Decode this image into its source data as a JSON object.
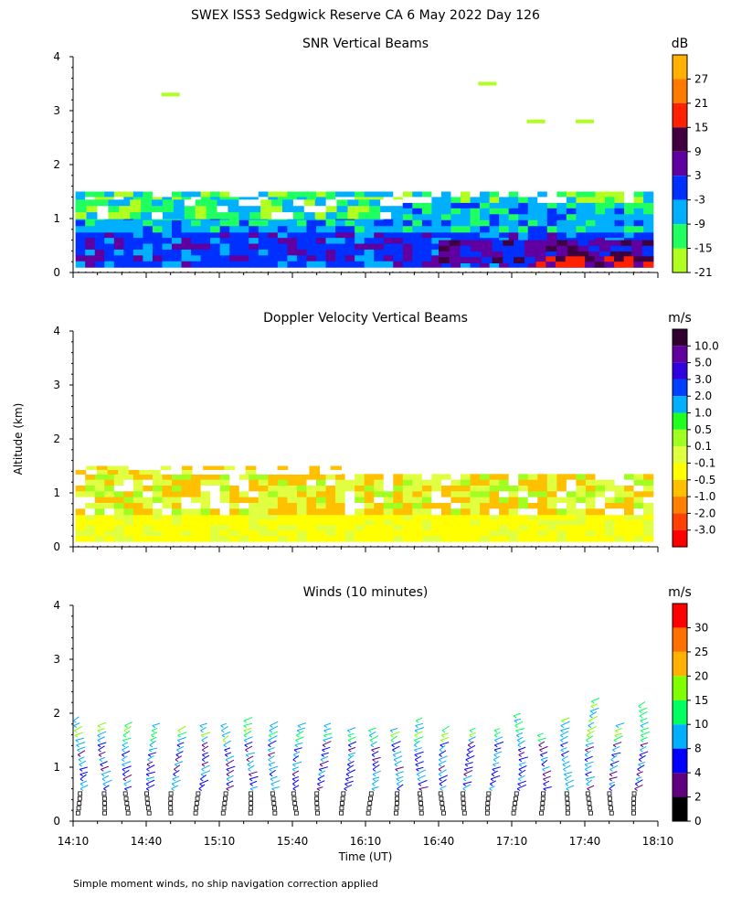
{
  "chart_data": {
    "type": "heatmap",
    "title": "SWEX ISS3 Sedgwick Reserve CA   6 May 2022 Day 126",
    "ylabel": "Altitude (km)",
    "xlabel": "Time (UT)",
    "footnote": "Simple moment winds, no ship navigation correction applied",
    "ylim": [
      0,
      4
    ],
    "yticks": [
      "0",
      "1",
      "2",
      "3",
      "4"
    ],
    "xlim_minutes": [
      850,
      1090
    ],
    "xtick_labels": [
      "14:10",
      "14:40",
      "15:10",
      "15:40",
      "16:10",
      "16:40",
      "17:10",
      "17:40",
      "18:10"
    ],
    "panels": [
      {
        "title": "SNR Vertical Beams",
        "unit": "dB",
        "colorbar_labels": [
          "27",
          "21",
          "15",
          "9",
          "3",
          "-3",
          "-9",
          "-15",
          "-21"
        ],
        "colors": [
          "#ffb000",
          "#ff7a00",
          "#ff2000",
          "#400040",
          "#6000a0",
          "#0030ff",
          "#00b0ff",
          "#20ff60",
          "#b0ff20"
        ],
        "layers": [
          {
            "alt_from": 0.05,
            "alt_to": 0.35,
            "value": -3
          },
          {
            "alt_from": 0.35,
            "alt_to": 0.7,
            "value": -3
          },
          {
            "alt_from": 0.7,
            "alt_to": 1.25,
            "value": -9
          },
          {
            "alt_from": 1.25,
            "alt_to": 1.45,
            "value": -15
          },
          {
            "alt_from": 1.45,
            "alt_to": 1.55,
            "value": -21
          },
          {
            "alt_from": 0.1,
            "alt_to": 0.35,
            "value": 15,
            "time_from": "17:15",
            "time_to": "18:10"
          },
          {
            "alt_from": 0.3,
            "alt_to": 0.65,
            "value": 6,
            "time_from": "16:00",
            "time_to": "18:10"
          }
        ],
        "echoes": [
          {
            "time": "17:40",
            "alt": 2.8,
            "value": -21
          },
          {
            "time": "17:20",
            "alt": 2.8,
            "value": -21
          },
          {
            "time": "17:00",
            "alt": 3.5,
            "value": -21
          },
          {
            "time": "14:50",
            "alt": 3.3,
            "value": -21
          }
        ]
      },
      {
        "title": "Doppler Velocity Vertical Beams",
        "unit": "m/s",
        "colorbar_labels": [
          "10.0",
          "5.0",
          "3.0",
          "2.0",
          "1.0",
          "0.5",
          "0.1",
          "-0.1",
          "-0.5",
          "-1.0",
          "-2.0",
          "-3.0"
        ],
        "colors": [
          "#300030",
          "#6000a0",
          "#3000e0",
          "#0040ff",
          "#00b0ff",
          "#20ff20",
          "#a0ff20",
          "#e0ff40",
          "#ffff00",
          "#ffc000",
          "#ff8000",
          "#ff4000",
          "#ff0000"
        ],
        "layers": [
          {
            "alt_from": 0.05,
            "alt_to": 0.6,
            "value": -0.1
          },
          {
            "alt_from": 0.6,
            "alt_to": 1.35,
            "value": -0.5
          },
          {
            "alt_from": 0.4,
            "alt_to": 1.3,
            "value": 0.1
          }
        ]
      },
      {
        "title": "Winds (10 minutes)",
        "unit": "m/s",
        "colorbar_labels": [
          "30",
          "25",
          "20",
          "15",
          "10",
          "8",
          "4",
          "2",
          "0"
        ],
        "colors": [
          "#ff0000",
          "#ff7000",
          "#ffb000",
          "#80ff00",
          "#00ff60",
          "#00b0ff",
          "#0000ff",
          "#600080",
          "#000000"
        ],
        "wind_profile_times": [
          "14:10",
          "14:20",
          "14:30",
          "14:40",
          "14:50",
          "15:00",
          "15:10",
          "15:20",
          "15:30",
          "15:40",
          "15:50",
          "16:00",
          "16:10",
          "16:20",
          "16:30",
          "16:40",
          "16:50",
          "17:00",
          "17:10",
          "17:20",
          "17:30",
          "17:40",
          "17:50",
          "18:00"
        ],
        "wind_profile_top_km": [
          1.9,
          1.8,
          1.85,
          1.8,
          1.75,
          1.85,
          1.8,
          1.9,
          1.8,
          1.85,
          1.8,
          1.75,
          1.7,
          1.7,
          1.9,
          1.75,
          1.7,
          1.75,
          2.0,
          1.65,
          1.9,
          2.3,
          1.8,
          2.2
        ],
        "wind_speed_colorbar_min": 0,
        "wind_speed_colorbar_max": 35
      }
    ]
  }
}
